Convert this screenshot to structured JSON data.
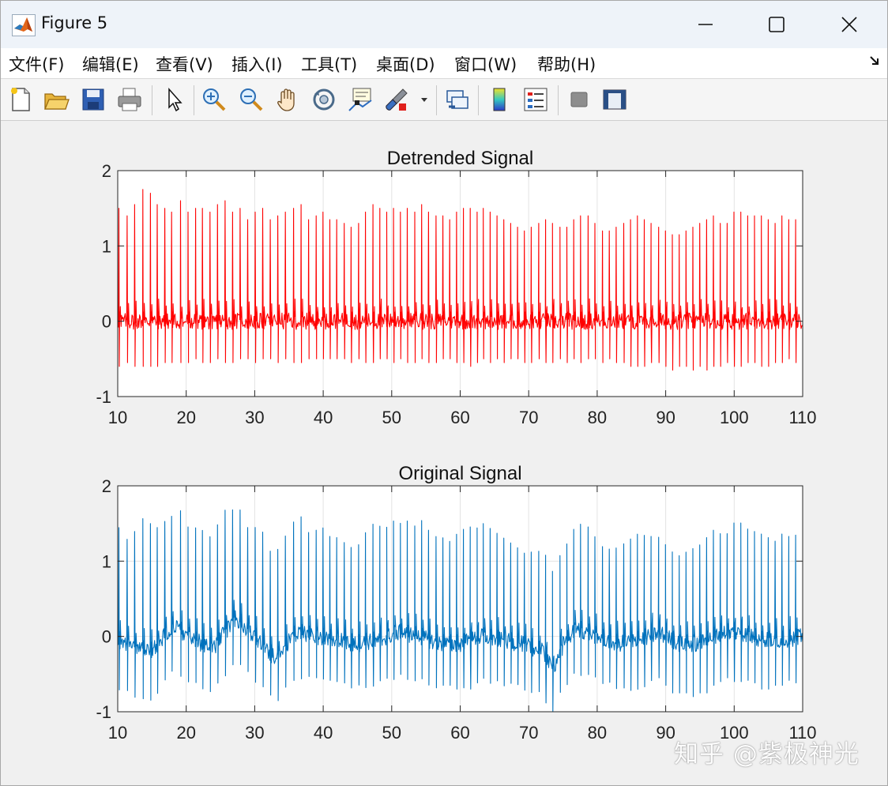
{
  "window": {
    "title": "Figure 5",
    "icon": "matlab-logo-icon"
  },
  "menu": {
    "items": [
      "文件(F)",
      "编辑(E)",
      "查看(V)",
      "插入(I)",
      "工具(T)",
      "桌面(D)",
      "窗口(W)",
      "帮助(H)"
    ]
  },
  "toolbar": {
    "buttons": [
      "new-figure-icon",
      "open-file-icon",
      "save-icon",
      "print-icon",
      "edit-plot-arrow-icon",
      "zoom-in-icon",
      "zoom-out-icon",
      "pan-hand-icon",
      "rotate-3d-icon",
      "data-cursor-icon",
      "brush-icon",
      "link-plot-icon",
      "colorbar-icon",
      "legend-icon",
      "hide-plot-tools-icon",
      "show-plot-tools-icon"
    ]
  },
  "watermark": "知乎 @紫极神光",
  "chart_data": [
    {
      "type": "line",
      "title": "Detrended Signal",
      "color": "#ff0000",
      "xlim": [
        10,
        110
      ],
      "ylim": [
        -1,
        2
      ],
      "xticks": [
        "10",
        "20",
        "30",
        "40",
        "50",
        "60",
        "70",
        "80",
        "90",
        "100",
        "110"
      ],
      "yticks": [
        "-1",
        "0",
        "1",
        "2"
      ],
      "grid": true,
      "beat_times": [
        10.2,
        11.4,
        12.5,
        13.7,
        14.8,
        15.8,
        16.9,
        17.9,
        19.2,
        20.3,
        21.4,
        22.4,
        23.5,
        24.6,
        25.7,
        26.8,
        27.9,
        29.0,
        30.1,
        31.2,
        32.3,
        33.4,
        34.5,
        35.7,
        36.8,
        37.9,
        39.0,
        40.0,
        41.0,
        42.0,
        43.1,
        44.1,
        45.2,
        46.2,
        47.3,
        48.3,
        49.3,
        50.3,
        51.3,
        52.3,
        53.4,
        54.4,
        55.4,
        56.5,
        57.5,
        58.5,
        59.5,
        60.5,
        61.5,
        62.5,
        63.4,
        64.4,
        65.4,
        66.4,
        67.4,
        68.4,
        69.4,
        70.4,
        71.5,
        72.5,
        73.5,
        74.6,
        75.6,
        76.6,
        77.6,
        78.7,
        79.7,
        80.8,
        81.8,
        82.8,
        83.9,
        84.9,
        85.9,
        86.9,
        87.9,
        89.0,
        90.0,
        91.0,
        92.0,
        93.0,
        94.0,
        95.0,
        96.0,
        97.0,
        98.0,
        99.0,
        100.0,
        101.0,
        102.0,
        103.0,
        104.0,
        105.0,
        106.0,
        107.0,
        108.0,
        109.0
      ],
      "peak_values": [
        1.5,
        1.4,
        1.55,
        1.75,
        1.7,
        1.55,
        1.5,
        1.45,
        1.6,
        1.45,
        1.5,
        1.5,
        1.45,
        1.55,
        1.6,
        1.45,
        1.5,
        1.35,
        1.45,
        1.5,
        1.35,
        1.4,
        1.45,
        1.5,
        1.55,
        1.35,
        1.4,
        1.45,
        1.35,
        1.35,
        1.3,
        1.25,
        1.3,
        1.45,
        1.55,
        1.5,
        1.45,
        1.5,
        1.45,
        1.5,
        1.45,
        1.55,
        1.45,
        1.4,
        1.4,
        1.35,
        1.45,
        1.5,
        1.5,
        1.45,
        1.5,
        1.45,
        1.4,
        1.35,
        1.3,
        1.25,
        1.2,
        1.25,
        1.3,
        1.35,
        1.3,
        1.25,
        1.25,
        1.35,
        1.4,
        1.4,
        1.3,
        1.2,
        1.2,
        1.25,
        1.3,
        1.35,
        1.4,
        1.35,
        1.3,
        1.25,
        1.2,
        1.15,
        1.15,
        1.2,
        1.25,
        1.3,
        1.35,
        1.4,
        1.3,
        1.3,
        1.45,
        1.45,
        1.4,
        1.4,
        1.4,
        1.35,
        1.3,
        1.4,
        1.35,
        1.35
      ],
      "trough_values": [
        -0.6,
        -0.55,
        -0.6,
        -0.6,
        -0.6,
        -0.6,
        -0.55,
        -0.55,
        -0.55,
        -0.55,
        -0.5,
        -0.55,
        -0.55,
        -0.5,
        -0.55,
        -0.55,
        -0.5,
        -0.5,
        -0.55,
        -0.5,
        -0.5,
        -0.55,
        -0.5,
        -0.55,
        -0.55,
        -0.5,
        -0.5,
        -0.5,
        -0.5,
        -0.5,
        -0.5,
        -0.55,
        -0.5,
        -0.55,
        -0.55,
        -0.5,
        -0.5,
        -0.55,
        -0.5,
        -0.55,
        -0.55,
        -0.5,
        -0.55,
        -0.55,
        -0.5,
        -0.5,
        -0.55,
        -0.55,
        -0.6,
        -0.55,
        -0.5,
        -0.55,
        -0.5,
        -0.55,
        -0.5,
        -0.5,
        -0.55,
        -0.55,
        -0.5,
        -0.55,
        -0.55,
        -0.5,
        -0.55,
        -0.5,
        -0.55,
        -0.5,
        -0.5,
        -0.55,
        -0.5,
        -0.55,
        -0.55,
        -0.6,
        -0.6,
        -0.6,
        -0.55,
        -0.55,
        -0.6,
        -0.65,
        -0.6,
        -0.6,
        -0.65,
        -0.6,
        -0.65,
        -0.6,
        -0.6,
        -0.55,
        -0.6,
        -0.6,
        -0.55,
        -0.55,
        -0.6,
        -0.6,
        -0.55,
        -0.55,
        -0.5,
        -0.55
      ]
    },
    {
      "type": "line",
      "title": "Original Signal",
      "color": "#0072bd",
      "xlim": [
        10,
        110
      ],
      "ylim": [
        -1,
        2
      ],
      "xticks": [
        "10",
        "20",
        "30",
        "40",
        "50",
        "60",
        "70",
        "80",
        "90",
        "100",
        "110"
      ],
      "yticks": [
        "-1",
        "0",
        "1",
        "2"
      ],
      "grid": true,
      "baseline_x": [
        10,
        12,
        15,
        18,
        21,
        24,
        27,
        30,
        33,
        36,
        39,
        42,
        45,
        48,
        51,
        54,
        57,
        60,
        63,
        66,
        69,
        72,
        73.5,
        75,
        77,
        80,
        83,
        86,
        89,
        92,
        95,
        98,
        101,
        104,
        107,
        110
      ],
      "baseline_y": [
        -0.05,
        -0.15,
        -0.2,
        0.15,
        -0.05,
        -0.15,
        0.25,
        0.0,
        -0.3,
        0.05,
        0.0,
        -0.05,
        -0.1,
        -0.05,
        0.05,
        0.0,
        -0.1,
        -0.1,
        0.0,
        -0.05,
        -0.1,
        -0.2,
        -0.45,
        -0.1,
        0.1,
        0.0,
        -0.1,
        -0.05,
        0.05,
        -0.1,
        -0.1,
        0.05,
        0.05,
        -0.05,
        -0.05,
        0.0
      ]
    }
  ]
}
